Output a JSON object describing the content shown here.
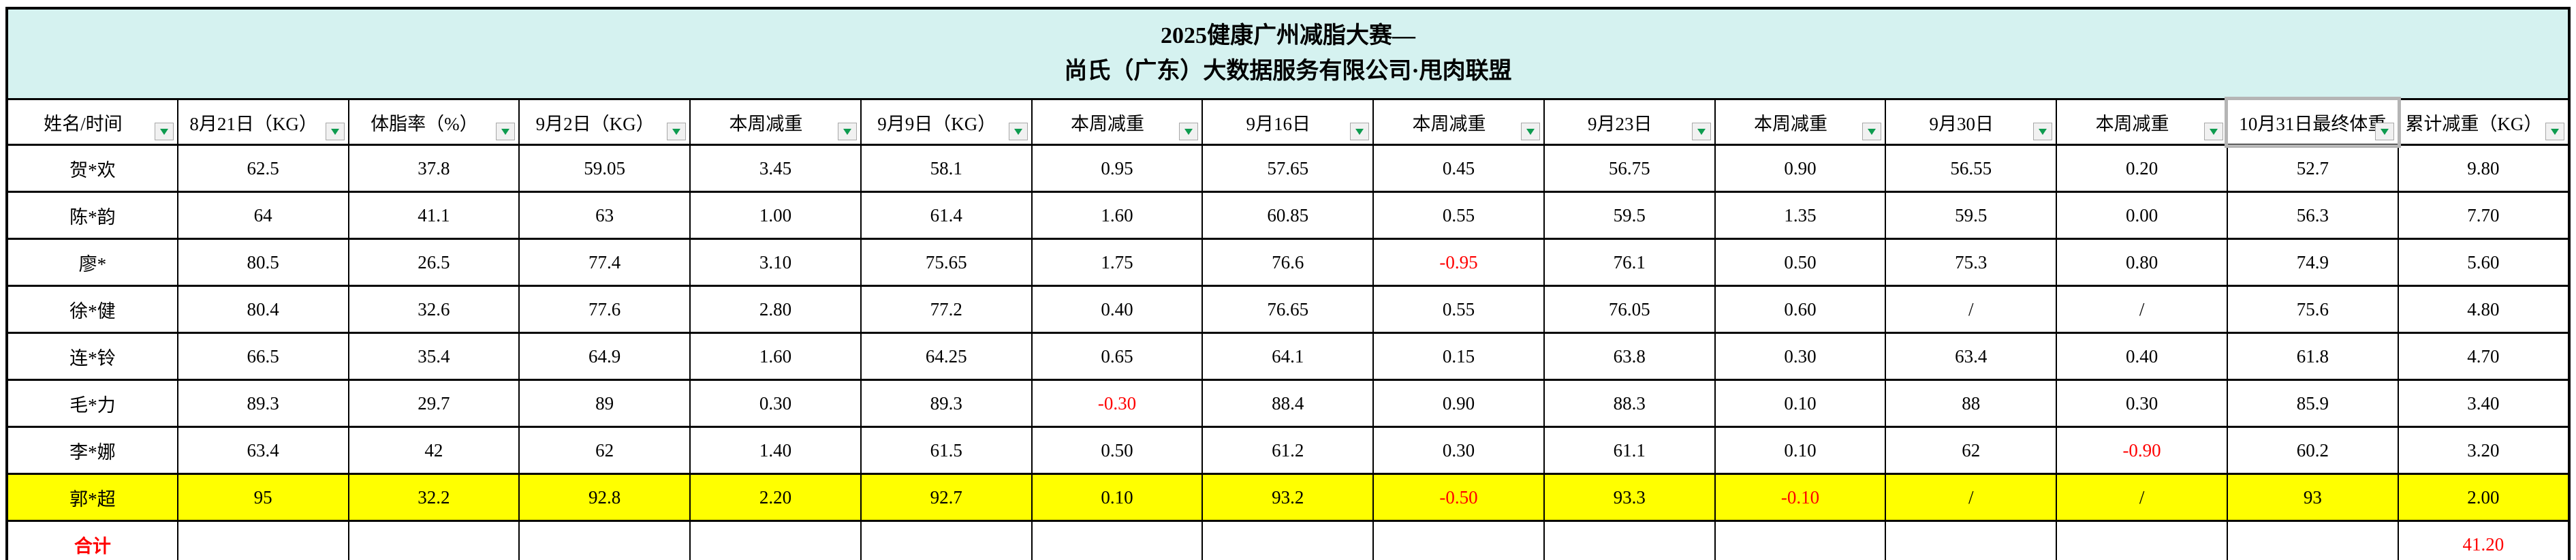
{
  "title": {
    "line1": "2025健康广州减脂大赛—",
    "line2": "尚氏（广东）大数据服务有限公司·甩肉联盟"
  },
  "table": {
    "columns": [
      "姓名/时间",
      "8月21日（KG）",
      "体脂率（%）",
      "9月2日（KG）",
      "本周减重",
      "9月9日（KG）",
      "本周减重",
      "9月16日",
      "本周减重",
      "9月23日",
      "本周减重",
      "9月30日",
      "本周减重",
      "10月31日最终体重",
      "累计减重（KG）"
    ],
    "selected_column_index": 13,
    "selected_column_label": "10月31日最终体重",
    "rows": [
      {
        "name": "贺*欢",
        "cells": [
          "62.5",
          "37.8",
          "59.05",
          "3.45",
          "58.1",
          "0.95",
          "57.65",
          "0.45",
          "56.75",
          "0.90",
          "56.55",
          "0.20",
          "52.7",
          "9.80"
        ]
      },
      {
        "name": "陈*韵",
        "cells": [
          "64",
          "41.1",
          "63",
          "1.00",
          "61.4",
          "1.60",
          "60.85",
          "0.55",
          "59.5",
          "1.35",
          "59.5",
          "0.00",
          "56.3",
          "7.70"
        ]
      },
      {
        "name": "廖*",
        "cells": [
          "80.5",
          "26.5",
          "77.4",
          "3.10",
          "75.65",
          "1.75",
          "76.6",
          {
            "v": "-0.95",
            "red": true
          },
          "76.1",
          "0.50",
          "75.3",
          "0.80",
          "74.9",
          "5.60"
        ]
      },
      {
        "name": "徐*健",
        "cells": [
          "80.4",
          "32.6",
          "77.6",
          "2.80",
          "77.2",
          "0.40",
          "76.65",
          "0.55",
          "76.05",
          "0.60",
          "/",
          "/",
          "75.6",
          "4.80"
        ]
      },
      {
        "name": "连*铃",
        "cells": [
          "66.5",
          "35.4",
          "64.9",
          "1.60",
          "64.25",
          "0.65",
          "64.1",
          "0.15",
          "63.8",
          "0.30",
          "63.4",
          "0.40",
          "61.8",
          "4.70"
        ]
      },
      {
        "name": "毛*力",
        "cells": [
          "89.3",
          "29.7",
          "89",
          "0.30",
          "89.3",
          {
            "v": "-0.30",
            "red": true
          },
          "88.4",
          "0.90",
          "88.3",
          "0.10",
          "88",
          "0.30",
          "85.9",
          "3.40"
        ]
      },
      {
        "name": "李*娜",
        "cells": [
          "63.4",
          "42",
          "62",
          "1.40",
          "61.5",
          "0.50",
          "61.2",
          "0.30",
          "61.1",
          "0.10",
          "62",
          {
            "v": "-0.90",
            "red": true
          },
          "60.2",
          "3.20"
        ]
      },
      {
        "name": "郭*超",
        "highlight": true,
        "cells": [
          "95",
          "32.2",
          "92.8",
          "2.20",
          "92.7",
          "0.10",
          "93.2",
          {
            "v": "-0.50",
            "red": true
          },
          "93.3",
          {
            "v": "-0.10",
            "red": true
          },
          "/",
          "/",
          "93",
          "2.00"
        ]
      },
      {
        "name": "合计",
        "total": true,
        "name_red": true,
        "cells": [
          "",
          "",
          "",
          "",
          "",
          "",
          "",
          "",
          "",
          "",
          "",
          "",
          "",
          {
            "v": "41.20",
            "red": true
          }
        ]
      }
    ]
  },
  "colors": {
    "title_background": "#d5f2f0",
    "highlight_row": "#ffff00",
    "negative_value": "#ff0000",
    "filter_arrow": "#0e9b4f",
    "grid_border": "#000000",
    "selection_frame": "#b5b5b5"
  },
  "icons": {
    "filter_dropdown": "green triangle pointing down in light gray square"
  }
}
